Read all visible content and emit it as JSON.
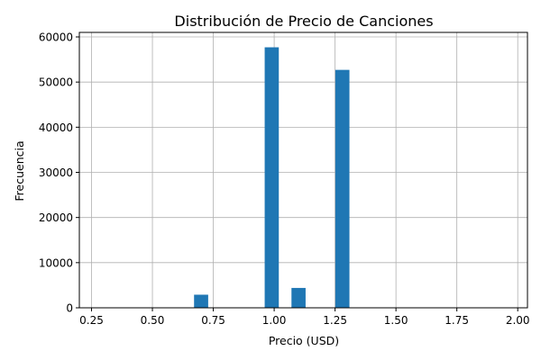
{
  "chart_data": {
    "type": "bar",
    "title": "Distribución de Precio de Canciones",
    "xlabel": "Precio (USD)",
    "ylabel": "Frecuencia",
    "xlim": [
      0.2,
      2.04
    ],
    "ylim": [
      0,
      61000
    ],
    "xticks": [
      "0.25",
      "0.50",
      "0.75",
      "1.00",
      "1.25",
      "1.50",
      "1.75",
      "2.00"
    ],
    "xtick_values": [
      0.25,
      0.5,
      0.75,
      1.0,
      1.25,
      1.5,
      1.75,
      2.0
    ],
    "yticks": [
      "0",
      "10000",
      "20000",
      "30000",
      "40000",
      "50000",
      "60000"
    ],
    "ytick_values": [
      0,
      10000,
      20000,
      30000,
      40000,
      50000,
      60000
    ],
    "grid": true,
    "legend": "none",
    "bar_color": "#1f77b4",
    "bin_width": 0.058,
    "bars": [
      {
        "x": 0.7,
        "value": 2900
      },
      {
        "x": 0.99,
        "value": 57700
      },
      {
        "x": 1.1,
        "value": 4400
      },
      {
        "x": 1.28,
        "value": 52700
      }
    ]
  }
}
